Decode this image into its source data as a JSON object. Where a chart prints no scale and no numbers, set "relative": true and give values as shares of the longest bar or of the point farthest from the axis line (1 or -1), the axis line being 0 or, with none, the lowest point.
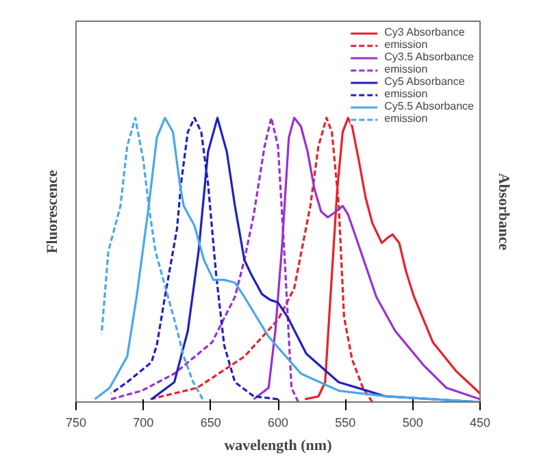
{
  "chart_data": {
    "type": "line",
    "xlabel": "wavelength (nm)",
    "ylabel": "Fluorescence",
    "y2label": "Absorbance",
    "relative": true,
    "xlim": [
      750,
      450
    ],
    "xticks": [
      750,
      700,
      650,
      600,
      550,
      500,
      450
    ],
    "grid": false,
    "legend": "top right",
    "marker": "none",
    "series": [
      {
        "name": "Cy3 Absorbance",
        "color": "#e8202a",
        "line_style": "solid",
        "x": [
          450,
          468,
          485,
          499,
          505,
          510,
          515,
          518,
          523,
          530,
          535,
          540,
          545,
          548,
          552,
          556,
          558,
          562,
          565,
          570,
          580
        ],
        "values": [
          0.03,
          0.11,
          0.21,
          0.37,
          0.46,
          0.56,
          0.59,
          0.58,
          0.56,
          0.63,
          0.72,
          0.85,
          0.97,
          1.0,
          0.95,
          0.75,
          0.6,
          0.3,
          0.07,
          0.02,
          0.01
        ]
      },
      {
        "name": "emission",
        "color": "#e8202a",
        "line_style": "dashed",
        "x": [
          530,
          537,
          545,
          551,
          555,
          560,
          564,
          570,
          576,
          588,
          600,
          625,
          660,
          695
        ],
        "values": [
          0.0,
          0.05,
          0.15,
          0.3,
          0.7,
          0.95,
          1.0,
          0.9,
          0.69,
          0.4,
          0.29,
          0.16,
          0.05,
          0.01
        ]
      },
      {
        "name": "Cy3.5 Absorbance",
        "color": "#9b30d0",
        "line_style": "solid",
        "x": [
          450,
          475,
          492,
          513,
          527,
          540,
          548,
          552,
          557,
          563,
          568,
          573,
          578,
          583,
          588,
          592,
          597,
          602,
          607,
          618
        ],
        "values": [
          0.01,
          0.05,
          0.13,
          0.25,
          0.37,
          0.55,
          0.66,
          0.69,
          0.67,
          0.65,
          0.67,
          0.75,
          0.88,
          0.97,
          1.0,
          0.93,
          0.55,
          0.25,
          0.05,
          0.01
        ]
      },
      {
        "name": "emission",
        "color": "#9b30d0",
        "line_style": "dashed",
        "x": [
          585,
          590,
          595,
          600,
          605,
          610,
          618,
          625,
          632,
          649,
          677,
          701,
          724
        ],
        "values": [
          0.0,
          0.05,
          0.5,
          0.9,
          1.0,
          0.9,
          0.66,
          0.5,
          0.37,
          0.21,
          0.1,
          0.04,
          0.01
        ]
      },
      {
        "name": "Cy5 Absorbance",
        "color": "#2020c0",
        "line_style": "solid",
        "x": [
          450,
          520,
          555,
          579,
          593,
          600,
          606,
          612,
          620,
          625,
          632,
          638,
          645,
          652,
          659,
          667,
          677,
          694
        ],
        "values": [
          0.0,
          0.02,
          0.07,
          0.17,
          0.3,
          0.35,
          0.36,
          0.38,
          0.45,
          0.5,
          0.69,
          0.88,
          1.0,
          0.88,
          0.53,
          0.25,
          0.07,
          0.01
        ]
      },
      {
        "name": "emission",
        "color": "#2020c0",
        "line_style": "dashed",
        "x": [
          600,
          618,
          632,
          640,
          646,
          652,
          657,
          662,
          667,
          672,
          675,
          684,
          690,
          694,
          712,
          724
        ],
        "values": [
          0.01,
          0.02,
          0.07,
          0.2,
          0.45,
          0.77,
          0.95,
          1.0,
          0.95,
          0.77,
          0.61,
          0.37,
          0.2,
          0.14,
          0.07,
          0.03
        ]
      },
      {
        "name": "Cy5.5 Absorbance",
        "color": "#4aa8e8",
        "line_style": "solid",
        "x": [
          450,
          520,
          555,
          583,
          607,
          625,
          632,
          640,
          648,
          655,
          662,
          670,
          673,
          678,
          684,
          690,
          696,
          705,
          712,
          725,
          736
        ],
        "values": [
          0.0,
          0.02,
          0.04,
          0.1,
          0.23,
          0.37,
          0.42,
          0.43,
          0.43,
          0.5,
          0.62,
          0.69,
          0.77,
          0.95,
          1.0,
          0.93,
          0.69,
          0.37,
          0.16,
          0.05,
          0.01
        ]
      },
      {
        "name": "emission",
        "color": "#4aa8e8",
        "line_style": "dashed",
        "x": [
          656,
          663,
          670,
          677,
          691,
          696,
          700,
          706,
          712,
          717,
          726,
          731
        ],
        "values": [
          0.01,
          0.07,
          0.16,
          0.29,
          0.53,
          0.69,
          0.85,
          1.0,
          0.9,
          0.69,
          0.53,
          0.24
        ]
      }
    ]
  }
}
